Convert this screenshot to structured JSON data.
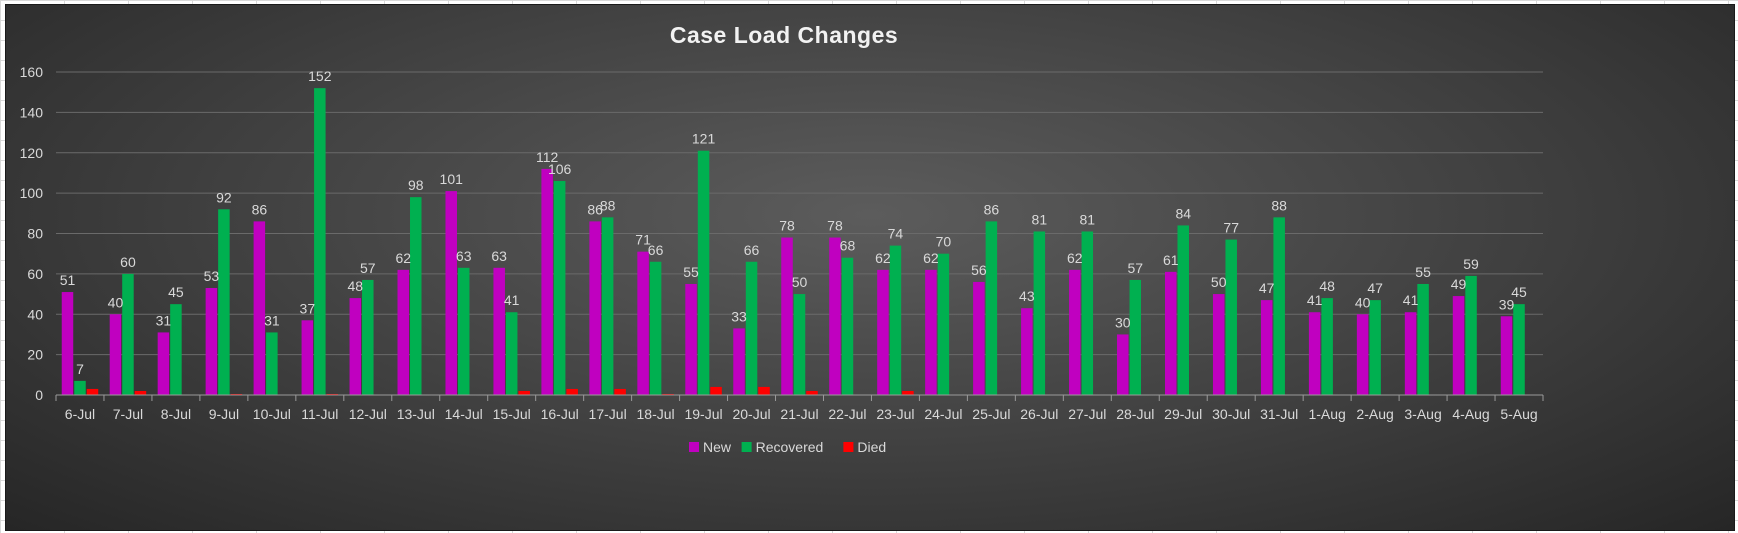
{
  "chart_data": {
    "type": "bar",
    "title": "Case Load Changes",
    "xlabel": "",
    "ylabel": "",
    "ylim": [
      0,
      160
    ],
    "yticks": [
      0,
      20,
      40,
      60,
      80,
      100,
      120,
      140,
      160
    ],
    "grid": true,
    "legend": "bottom-center",
    "categories": [
      "6-Jul",
      "7-Jul",
      "8-Jul",
      "9-Jul",
      "10-Jul",
      "11-Jul",
      "12-Jul",
      "13-Jul",
      "14-Jul",
      "15-Jul",
      "16-Jul",
      "17-Jul",
      "18-Jul",
      "19-Jul",
      "20-Jul",
      "21-Jul",
      "22-Jul",
      "23-Jul",
      "24-Jul",
      "25-Jul",
      "26-Jul",
      "27-Jul",
      "28-Jul",
      "29-Jul",
      "30-Jul",
      "31-Jul",
      "1-Aug",
      "2-Aug",
      "3-Aug",
      "4-Aug",
      "5-Aug"
    ],
    "series": [
      {
        "name": "New",
        "color": "#c000c0",
        "show_labels": true,
        "values": [
          51,
          40,
          31,
          53,
          86,
          37,
          48,
          62,
          101,
          63,
          112,
          86,
          71,
          55,
          33,
          78,
          78,
          62,
          62,
          56,
          43,
          62,
          30,
          61,
          50,
          47,
          41,
          40,
          41,
          49,
          39
        ]
      },
      {
        "name": "Recovered",
        "color": "#00b050",
        "show_labels": true,
        "values": [
          7,
          60,
          45,
          92,
          31,
          152,
          57,
          98,
          63,
          41,
          106,
          88,
          66,
          121,
          66,
          50,
          68,
          74,
          70,
          86,
          81,
          81,
          57,
          84,
          77,
          88,
          48,
          47,
          55,
          59,
          45
        ]
      },
      {
        "name": "Died",
        "color": "#ff0000",
        "show_labels": false,
        "values": [
          3,
          2,
          0,
          0.5,
          0,
          0.5,
          0,
          0,
          0,
          2,
          3,
          3,
          0.5,
          4,
          4,
          2,
          0,
          2,
          0,
          0,
          0,
          0,
          0,
          0,
          0,
          0,
          0,
          0,
          0,
          0,
          0
        ]
      }
    ]
  }
}
